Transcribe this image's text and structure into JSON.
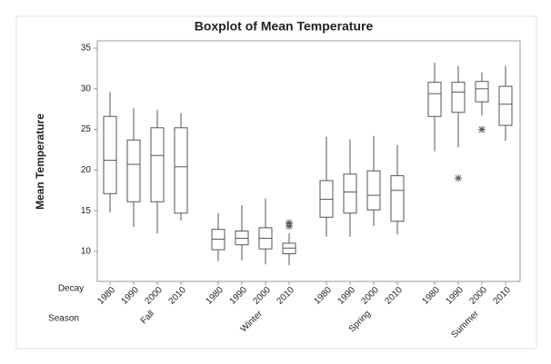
{
  "chart_data": {
    "type": "box",
    "title": "Boxplot of Mean Temperature",
    "ylabel": "Mean Temperature",
    "row_labels": [
      "Decay",
      "Season"
    ],
    "ylim": [
      6.3,
      35.9
    ],
    "yticks": [
      10,
      15,
      20,
      25,
      30,
      35
    ],
    "box_color": "#ffffff",
    "line_color": "#555555",
    "flier_color": "#555555",
    "seasons": [
      {
        "name": "Fall",
        "boxes": [
          {
            "label": "1980",
            "whislo": 14.8,
            "q1": 17.1,
            "med": 21.2,
            "q3": 26.6,
            "whishi": 29.6
          },
          {
            "label": "1990",
            "whislo": 13.0,
            "q1": 16.1,
            "med": 20.7,
            "q3": 23.7,
            "whishi": 27.6
          },
          {
            "label": "2000",
            "whislo": 12.2,
            "q1": 16.1,
            "med": 21.8,
            "q3": 25.2,
            "whishi": 27.4
          },
          {
            "label": "2010",
            "whislo": 13.8,
            "q1": 14.7,
            "med": 20.4,
            "q3": 25.2,
            "whishi": 27.0
          }
        ]
      },
      {
        "name": "Winter",
        "boxes": [
          {
            "label": "1980",
            "whislo": 8.8,
            "q1": 10.2,
            "med": 11.5,
            "q3": 12.7,
            "whishi": 14.7
          },
          {
            "label": "1990",
            "whislo": 8.9,
            "q1": 10.8,
            "med": 11.6,
            "q3": 12.5,
            "whishi": 15.7
          },
          {
            "label": "2000",
            "whislo": 8.4,
            "q1": 10.3,
            "med": 11.6,
            "q3": 12.9,
            "whishi": 16.5
          },
          {
            "label": "2010",
            "whislo": 8.3,
            "q1": 9.7,
            "med": 10.4,
            "q3": 11.0,
            "whishi": 12.2,
            "fliers": [
              13.1,
              13.5
            ]
          }
        ]
      },
      {
        "name": "Spring",
        "boxes": [
          {
            "label": "1980",
            "whislo": 11.8,
            "q1": 14.2,
            "med": 16.4,
            "q3": 18.7,
            "whishi": 24.1
          },
          {
            "label": "1990",
            "whislo": 11.8,
            "q1": 14.7,
            "med": 17.3,
            "q3": 19.5,
            "whishi": 23.8
          },
          {
            "label": "2000",
            "whislo": 13.1,
            "q1": 15.1,
            "med": 16.9,
            "q3": 19.9,
            "whishi": 24.2
          },
          {
            "label": "2010",
            "whislo": 12.1,
            "q1": 13.7,
            "med": 17.5,
            "q3": 19.3,
            "whishi": 23.1
          }
        ]
      },
      {
        "name": "Summer",
        "boxes": [
          {
            "label": "1980",
            "whislo": 22.3,
            "q1": 26.6,
            "med": 29.4,
            "q3": 30.8,
            "whishi": 33.2
          },
          {
            "label": "1990",
            "whislo": 22.8,
            "q1": 27.1,
            "med": 29.6,
            "q3": 30.8,
            "whishi": 32.8,
            "fliers": [
              19.0
            ]
          },
          {
            "label": "2000",
            "whislo": 26.7,
            "q1": 28.4,
            "med": 30.0,
            "q3": 30.9,
            "whishi": 32.0,
            "fliers": [
              25.0
            ]
          },
          {
            "label": "2010",
            "whislo": 23.6,
            "q1": 25.5,
            "med": 28.1,
            "q3": 30.3,
            "whishi": 32.8
          }
        ]
      }
    ]
  }
}
